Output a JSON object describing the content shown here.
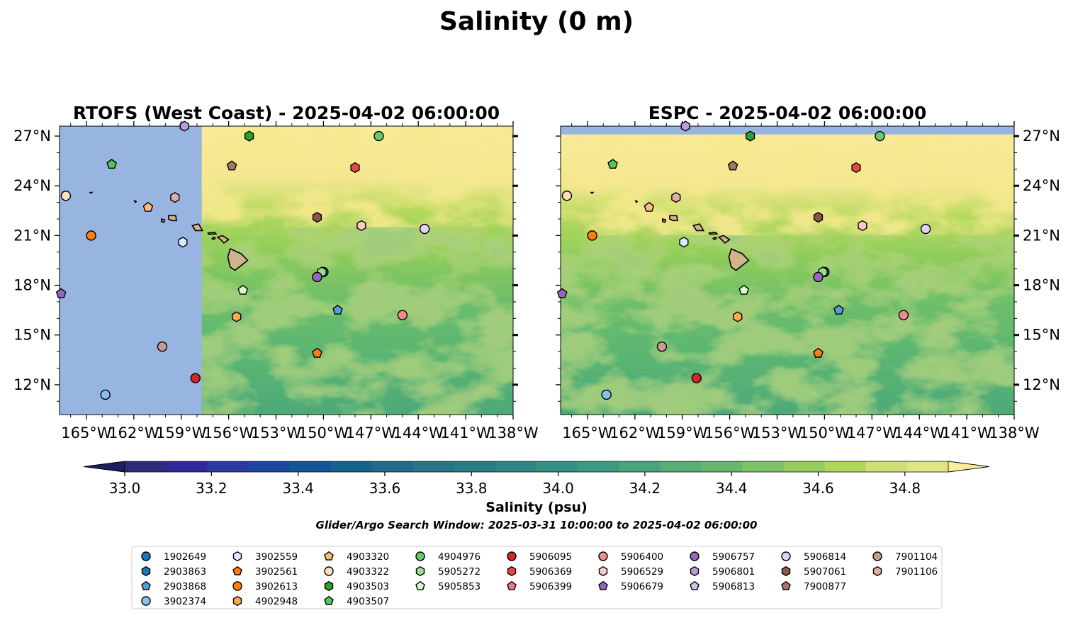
{
  "figure": {
    "title": "Salinity (0 m)",
    "search_window": "Glider/Argo Search Window: 2025-03-31 10:00:00 to 2025-04-02 06:00:00"
  },
  "chart_data": [
    {
      "type": "heatmap",
      "panel": "left",
      "title": "RTOFS (West Coast) - 2025-04-02 06:00:00",
      "x_ticks": [
        "165°W",
        "162°W",
        "159°W",
        "156°W",
        "153°W",
        "150°W",
        "147°W",
        "144°W",
        "141°W",
        "138°W"
      ],
      "y_ticks": [
        "27°N",
        "24°N",
        "21°N",
        "18°N",
        "15°N",
        "12°N"
      ],
      "xlim": [
        -166.7,
        -138.0
      ],
      "ylim": [
        10.2,
        27.6
      ],
      "model_domain_west_edge_lon": -157.7,
      "no_data_color": "#97b5e0"
    },
    {
      "type": "heatmap",
      "panel": "right",
      "title": "ESPC - 2025-04-02 06:00:00",
      "x_ticks": [
        "165°W",
        "162°W",
        "159°W",
        "156°W",
        "153°W",
        "150°W",
        "147°W",
        "144°W",
        "141°W",
        "138°W"
      ],
      "y_ticks": [
        "27°N",
        "24°N",
        "21°N",
        "18°N",
        "15°N",
        "12°N"
      ],
      "xlim": [
        -166.7,
        -138.0
      ],
      "ylim": [
        10.2,
        27.6
      ],
      "model_domain_north_edge_lat": 27.1,
      "no_data_color": "#97b5e0"
    }
  ],
  "colorbar": {
    "label": "Salinity (psu)",
    "range": [
      33.0,
      34.9
    ],
    "step": 0.1,
    "ticks": [
      "33.0",
      "33.2",
      "33.4",
      "33.6",
      "33.8",
      "34.0",
      "34.2",
      "34.4",
      "34.6",
      "34.8"
    ],
    "colors": [
      "#2b2c7c",
      "#30299c",
      "#2c39a4",
      "#1d48a2",
      "#125697",
      "#16628f",
      "#1f6c8c",
      "#267589",
      "#297e86",
      "#2c8685",
      "#329183",
      "#3b9b80",
      "#48a47c",
      "#56ae75",
      "#66b86d",
      "#7dc265",
      "#95cc5b",
      "#b0d65a",
      "#d0df74",
      "#e3e486"
    ],
    "under_color": "#1f1c60",
    "over_color": "#fbeb9b"
  },
  "floats": [
    {
      "id": "1902649",
      "marker": "circle",
      "color": "#1f77b4",
      "lon": -150.0,
      "lat": 18.8
    },
    {
      "id": "2903863",
      "marker": "hexagon",
      "color": "#1f77b4",
      "lon": null,
      "lat": null
    },
    {
      "id": "2903868",
      "marker": "pentagon",
      "color": "#4f9fd6",
      "lon": -149.1,
      "lat": 16.5
    },
    {
      "id": "3902374",
      "marker": "circle",
      "color": "#88c2ec",
      "lon": -163.8,
      "lat": 11.4
    },
    {
      "id": "3902559",
      "marker": "hexagon",
      "color": "#d9ecff",
      "lon": -158.9,
      "lat": 20.6
    },
    {
      "id": "3902561",
      "marker": "pentagon",
      "color": "#ff7f0e",
      "lon": -150.4,
      "lat": 13.9
    },
    {
      "id": "3902613",
      "marker": "circle",
      "color": "#ff7f0e",
      "lon": -164.7,
      "lat": 21.0
    },
    {
      "id": "4902948",
      "marker": "hexagon",
      "color": "#ffa94d",
      "lon": -155.5,
      "lat": 16.1
    },
    {
      "id": "4903320",
      "marker": "pentagon",
      "color": "#ffbb78",
      "lon": -161.1,
      "lat": 22.7
    },
    {
      "id": "4903322",
      "marker": "circle",
      "color": "#ffe0c2",
      "lon": -166.3,
      "lat": 23.4
    },
    {
      "id": "4903503",
      "marker": "hexagon",
      "color": "#2ca02c",
      "lon": -154.7,
      "lat": 27.0
    },
    {
      "id": "4903507",
      "marker": "pentagon",
      "color": "#56c456",
      "lon": -163.4,
      "lat": 25.3
    },
    {
      "id": "4904976",
      "marker": "circle",
      "color": "#66cc66",
      "lon": -146.5,
      "lat": 27.0
    },
    {
      "id": "5905272",
      "marker": "hexagon",
      "color": "#98df8a",
      "lon": -150.1,
      "lat": 18.8
    },
    {
      "id": "5905853",
      "marker": "pentagon",
      "color": "#d8f9c8",
      "lon": -155.1,
      "lat": 17.7
    },
    {
      "id": "5906095",
      "marker": "circle",
      "color": "#d62728",
      "lon": -158.1,
      "lat": 12.4
    },
    {
      "id": "5906369",
      "marker": "hexagon",
      "color": "#e8474a",
      "lon": -148.0,
      "lat": 25.1
    },
    {
      "id": "5906399",
      "marker": "pentagon",
      "color": "#f0787a",
      "lon": null,
      "lat": null
    },
    {
      "id": "5906400",
      "marker": "circle",
      "color": "#f08c8c",
      "lon": -145.0,
      "lat": 16.2
    },
    {
      "id": "5906529",
      "marker": "hexagon",
      "color": "#ffc8c8",
      "lon": -147.6,
      "lat": 21.6
    },
    {
      "id": "5906679",
      "marker": "pentagon",
      "color": "#9467bd",
      "lon": -166.6,
      "lat": 17.5
    },
    {
      "id": "5906757",
      "marker": "circle",
      "color": "#9467bd",
      "lon": -150.4,
      "lat": 18.5
    },
    {
      "id": "5906801",
      "marker": "hexagon",
      "color": "#b99cdc",
      "lon": -158.8,
      "lat": 27.6
    },
    {
      "id": "5906813",
      "marker": "pentagon",
      "color": "#d3bff0",
      "lon": null,
      "lat": null
    },
    {
      "id": "5906814",
      "marker": "circle",
      "color": "#e4d2fb",
      "lon": -143.6,
      "lat": 21.4
    },
    {
      "id": "5907061",
      "marker": "hexagon",
      "color": "#8c564b",
      "lon": -150.4,
      "lat": 22.1
    },
    {
      "id": "7900877",
      "marker": "pentagon",
      "color": "#a8756a",
      "lon": -155.8,
      "lat": 25.2
    },
    {
      "id": "7901104",
      "marker": "circle",
      "color": "#c49c94",
      "lon": -160.2,
      "lat": 14.3
    },
    {
      "id": "7901106",
      "marker": "hexagon",
      "color": "#e6aba0",
      "lon": -159.4,
      "lat": 23.3
    }
  ]
}
